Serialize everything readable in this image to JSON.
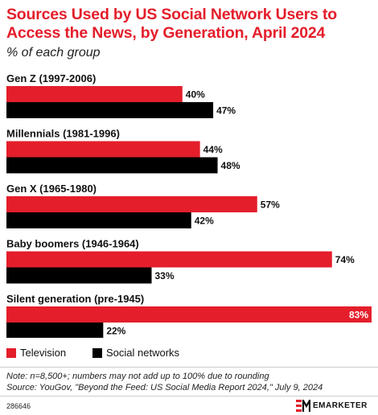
{
  "header": {
    "title": "Sources Used by US Social Network Users to Access the News, by Generation, April 2024",
    "subtitle": "% of each group"
  },
  "colors": {
    "television": "#e41e2b",
    "social_networks": "#000000",
    "title": "#e41e2b"
  },
  "chart_data": {
    "type": "bar",
    "orientation": "horizontal",
    "categories": [
      "Gen Z (1997-2006)",
      "Millennials (1981-1996)",
      "Gen X (1965-1980)",
      "Baby boomers (1946-1964)",
      "Silent generation (pre-1945)"
    ],
    "series": [
      {
        "name": "Television",
        "values": [
          40,
          44,
          57,
          74,
          83
        ],
        "labels": [
          "40%",
          "44%",
          "57%",
          "74%",
          "83%"
        ]
      },
      {
        "name": "Social networks",
        "values": [
          47,
          48,
          42,
          33,
          22
        ],
        "labels": [
          "47%",
          "48%",
          "42%",
          "33%",
          "22%"
        ]
      }
    ],
    "xlim": [
      0,
      83
    ],
    "grid": false,
    "legend_position": "bottom-left"
  },
  "legend": {
    "television": "Television",
    "social_networks": "Social networks"
  },
  "footer": {
    "note": "Note: n=8,500+; numbers may not add up to 100% due to rounding",
    "source": "Source: YouGov, \"Beyond the Feed: US Social Media Report 2024,\" July 9, 2024",
    "chart_id": "286646",
    "brand": "EMARKETER"
  }
}
